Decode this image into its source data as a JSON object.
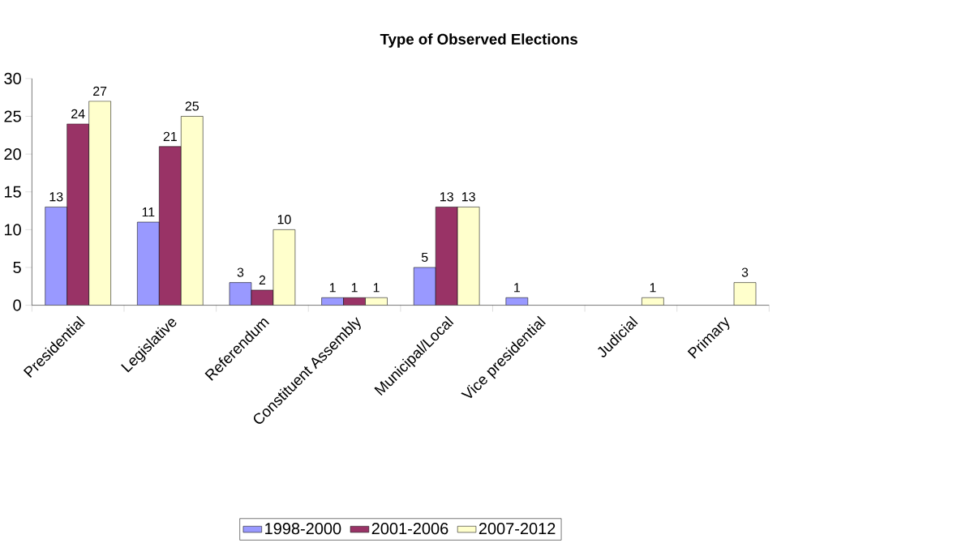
{
  "chart_data": {
    "type": "bar",
    "title": "Type of Observed Elections",
    "categories": [
      "Presidential",
      "Legislative",
      "Referendum",
      "Constituent Assembly",
      "Municipal/Local",
      "Vice presidential",
      "Judicial",
      "Primary"
    ],
    "series": [
      {
        "name": "1998-2000",
        "color": "#9999ff",
        "values": [
          13,
          11,
          3,
          1,
          5,
          1,
          null,
          null
        ]
      },
      {
        "name": "2001-2006",
        "color": "#993366",
        "values": [
          24,
          21,
          2,
          1,
          13,
          null,
          null,
          null
        ]
      },
      {
        "name": "2007-2012",
        "color": "#ffffcc",
        "values": [
          27,
          25,
          10,
          1,
          13,
          null,
          1,
          3
        ]
      }
    ],
    "ylim": [
      0,
      30
    ],
    "yticks": [
      0,
      5,
      10,
      15,
      20,
      25,
      30
    ],
    "data_labels": true,
    "legend": "bottom",
    "grid": false
  }
}
